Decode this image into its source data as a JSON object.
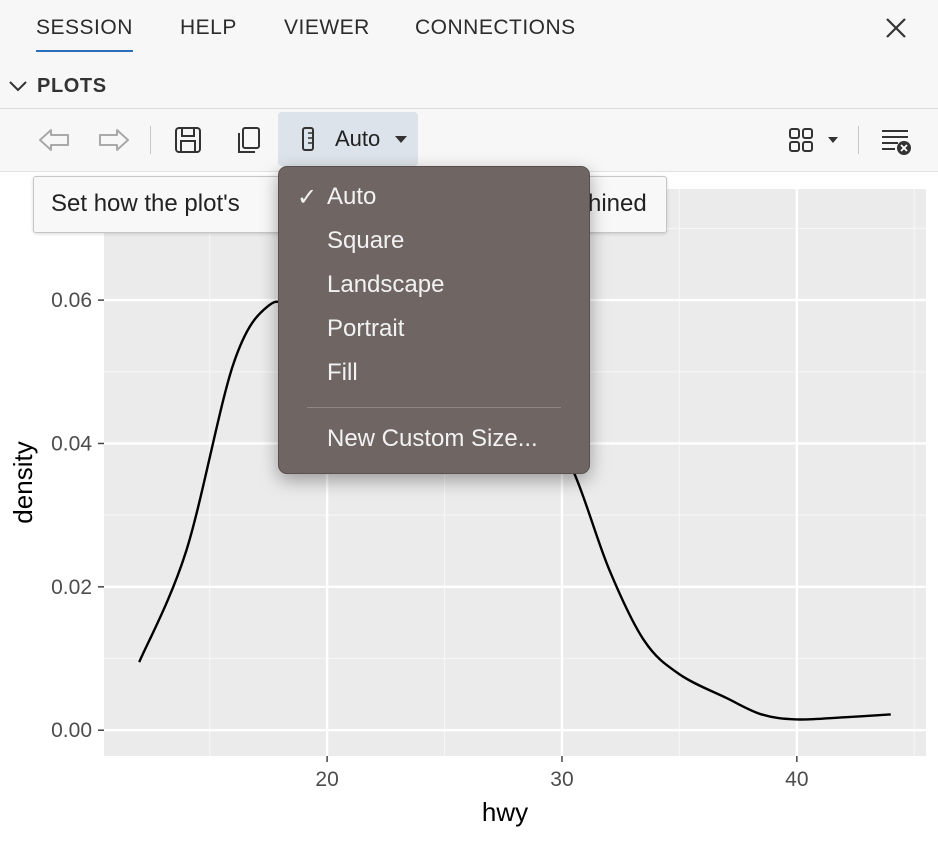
{
  "tabs": [
    {
      "label": "SESSION",
      "active": true
    },
    {
      "label": "HELP"
    },
    {
      "label": "VIEWER"
    },
    {
      "label": "CONNECTIONS"
    }
  ],
  "section": {
    "title": "PLOTS"
  },
  "toolbar": {
    "sizing_label": "Auto"
  },
  "tooltip": {
    "text_left": "Set how the plot's",
    "text_right": "hined"
  },
  "menu": {
    "items": [
      {
        "label": "Auto",
        "checked": true
      },
      {
        "label": "Square"
      },
      {
        "label": "Landscape"
      },
      {
        "label": "Portrait"
      },
      {
        "label": "Fill"
      }
    ],
    "custom_label": "New Custom Size..."
  },
  "chart_data": {
    "type": "line",
    "title": "",
    "xlabel": "hwy",
    "ylabel": "density",
    "xlim": [
      10.5,
      45.5
    ],
    "ylim": [
      -0.0036,
      0.0755
    ],
    "xticks": [
      20,
      30,
      40
    ],
    "xtick_labels": [
      "20",
      "30",
      "40"
    ],
    "yticks": [
      0,
      0.02,
      0.04,
      0.06
    ],
    "ytick_labels": [
      "0.00",
      "0.02",
      "0.04",
      "0.06"
    ],
    "grid": true,
    "background": "#ebebeb",
    "series": [
      {
        "x": [
          12,
          14,
          16,
          17.5,
          18.5,
          20,
          21.5,
          23,
          26,
          29,
          30.5,
          32,
          33.5,
          35,
          37,
          38.5,
          40,
          42,
          44
        ],
        "y": [
          0.0095,
          0.025,
          0.051,
          0.0592,
          0.0575,
          0.0445,
          0.0365,
          0.038,
          0.048,
          0.0445,
          0.036,
          0.0225,
          0.0125,
          0.0078,
          0.0045,
          0.0022,
          0.0015,
          0.0018,
          0.0022
        ]
      }
    ]
  }
}
